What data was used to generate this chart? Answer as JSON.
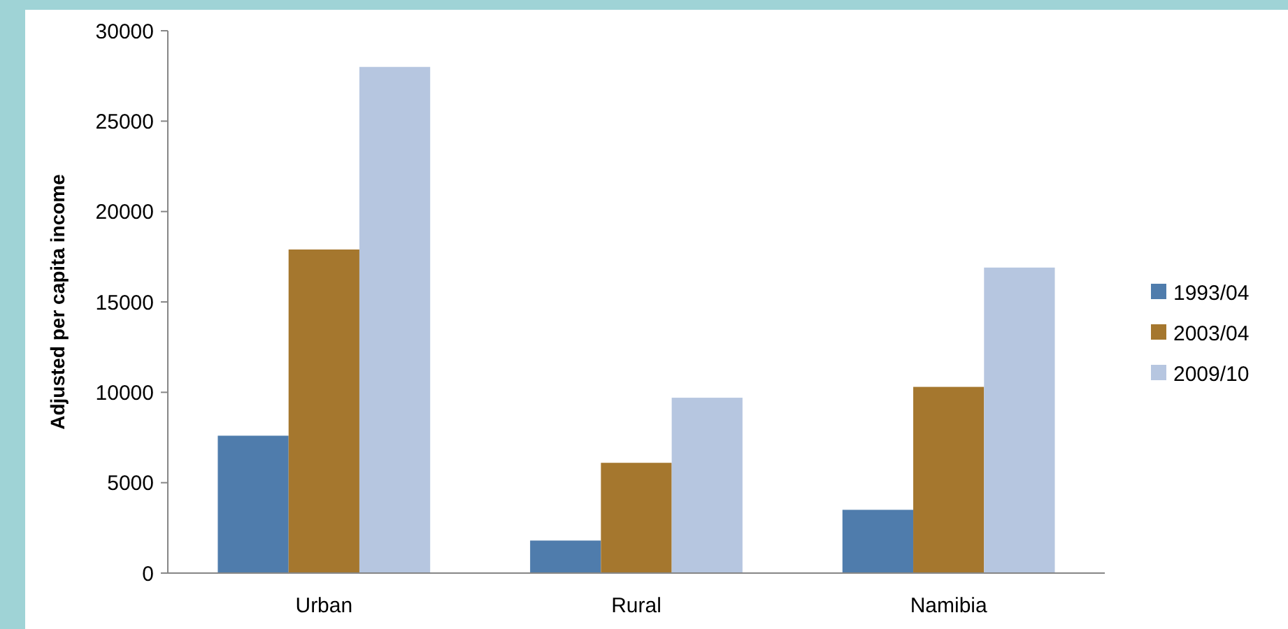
{
  "chart_data": {
    "type": "bar",
    "ylabel": "Adjusted per capita income",
    "categories": [
      "Urban",
      "Rural",
      "Namibia"
    ],
    "series": [
      {
        "name": "1993/04",
        "color": "#4f7cac",
        "values": [
          7600,
          1800,
          3500
        ]
      },
      {
        "name": "2003/04",
        "color": "#a5772e",
        "values": [
          17900,
          6100,
          10300
        ]
      },
      {
        "name": "2009/10",
        "color": "#b6c6e0",
        "values": [
          28000,
          9700,
          16900
        ]
      }
    ],
    "ylim": [
      0,
      30000
    ],
    "yticks": [
      0,
      5000,
      10000,
      15000,
      20000,
      25000,
      30000
    ],
    "grid": false,
    "legend": "right"
  }
}
